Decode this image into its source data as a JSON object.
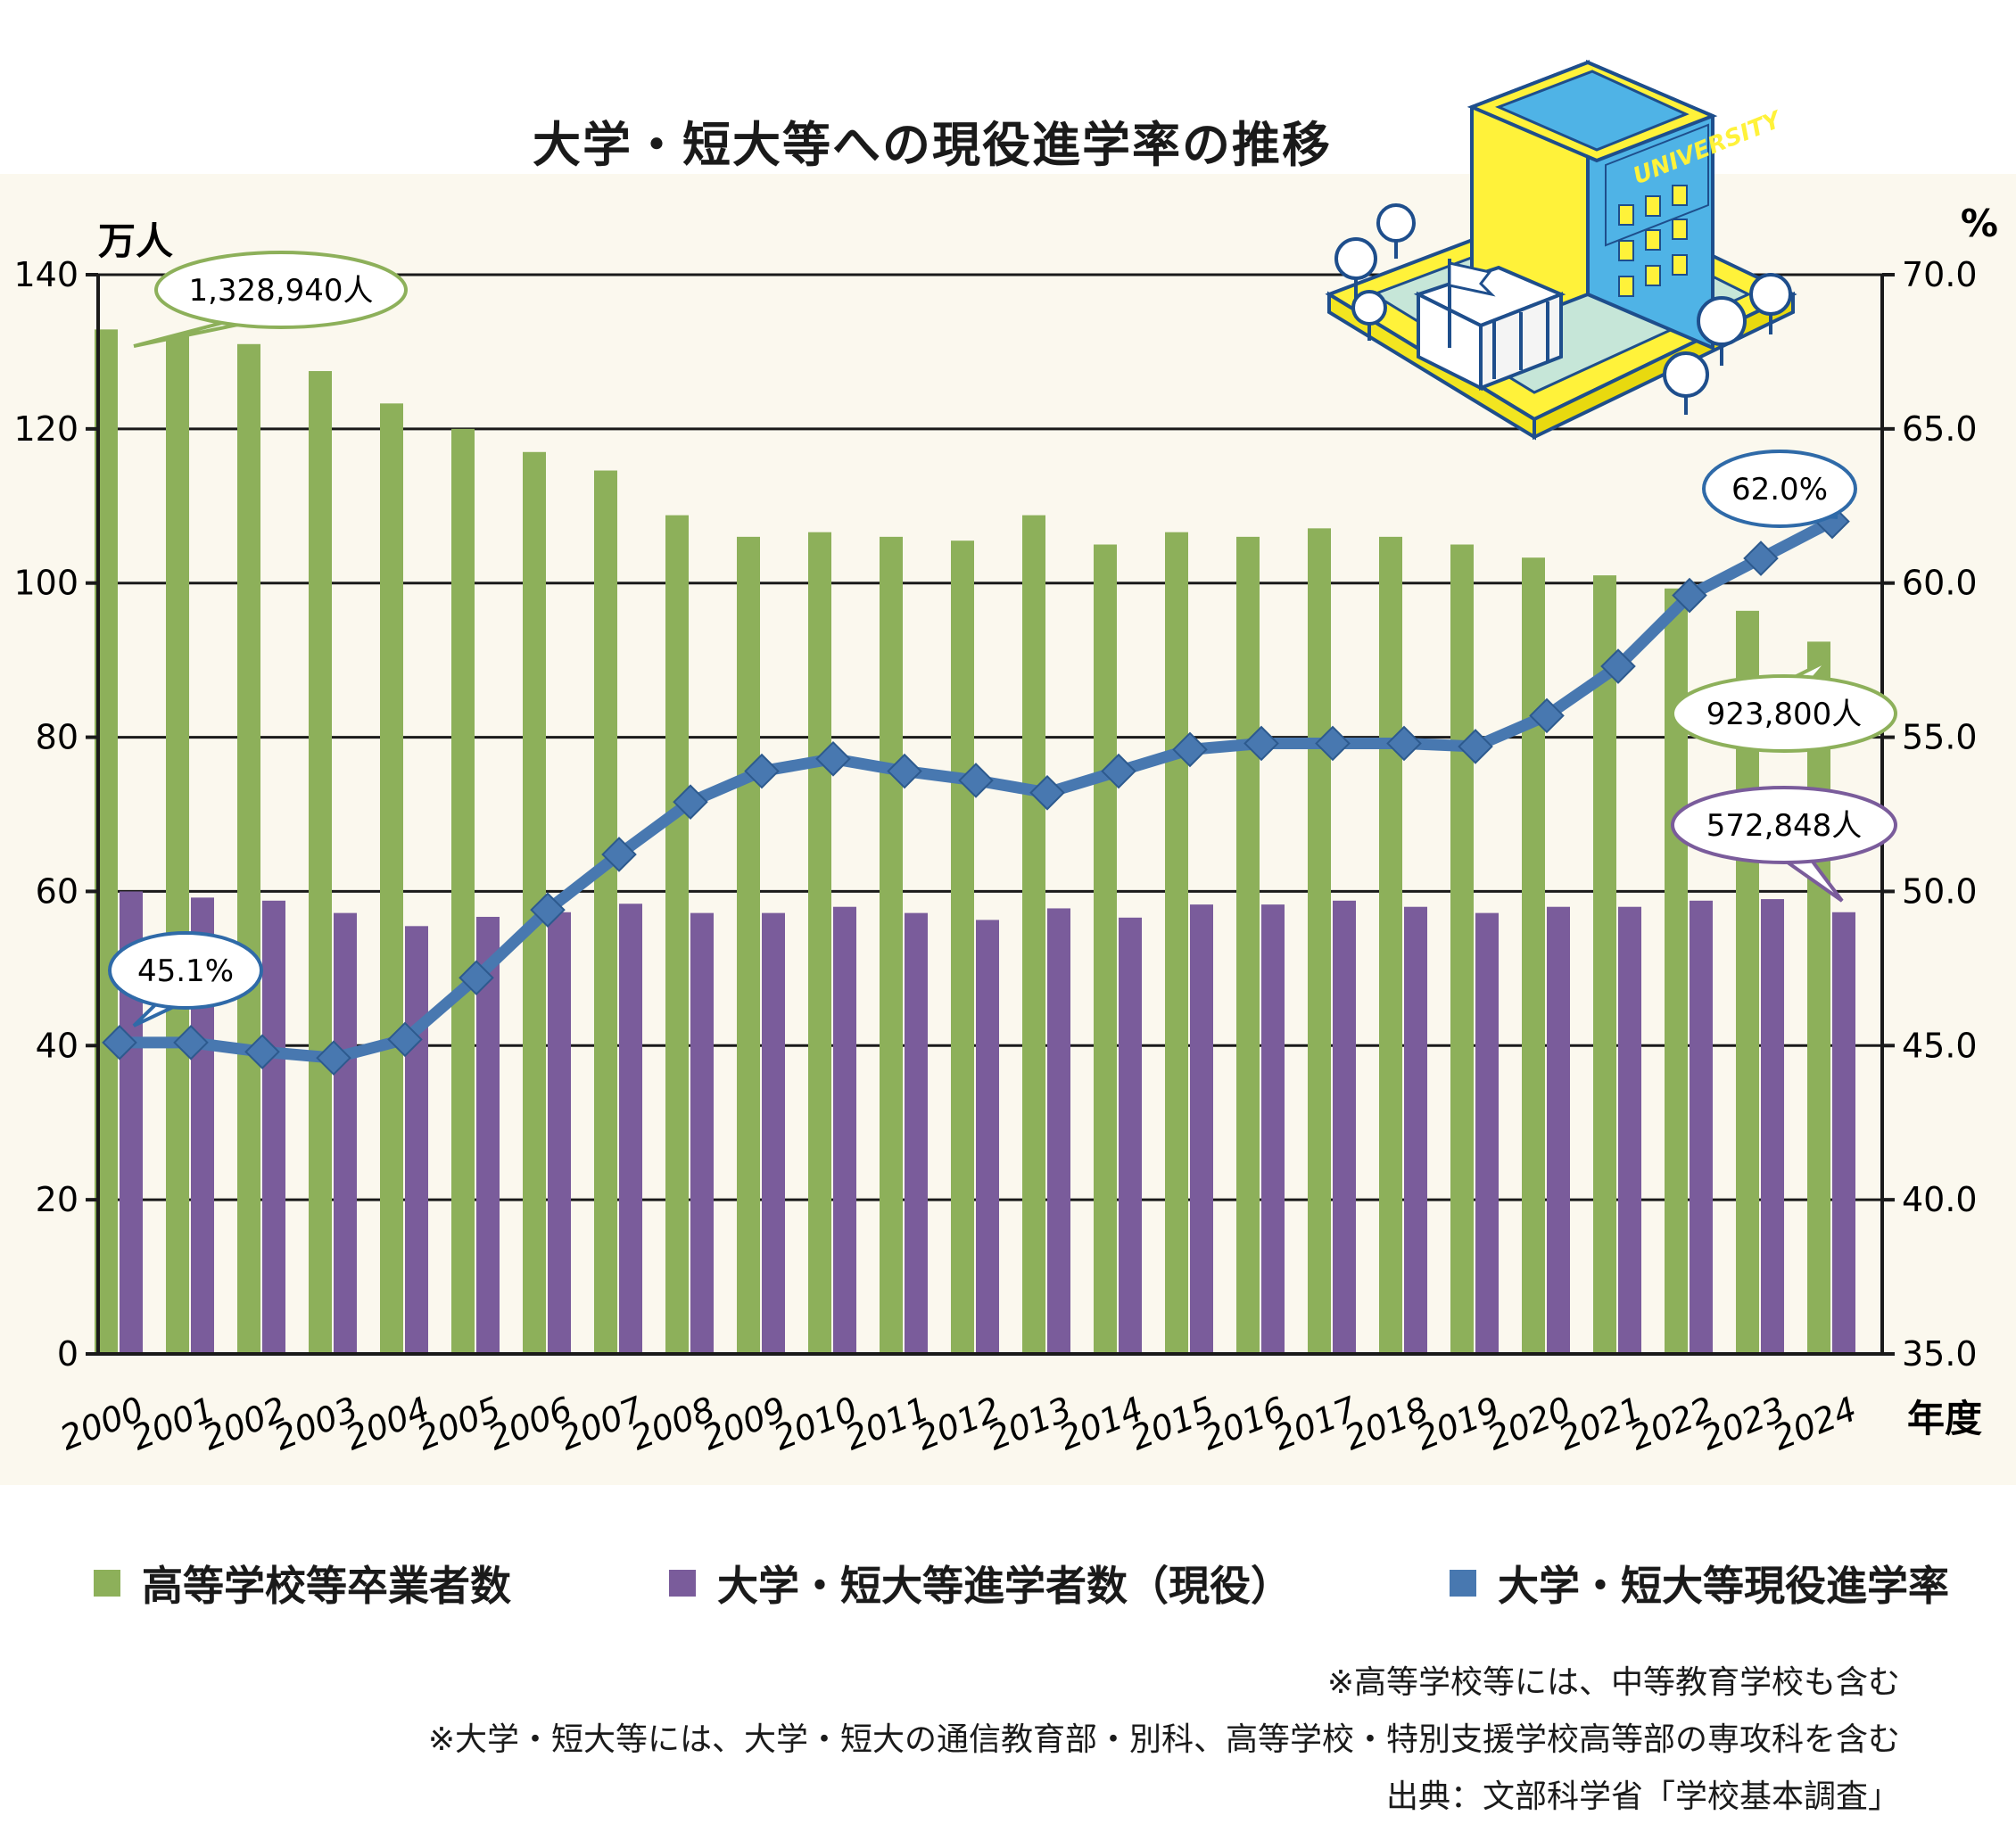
{
  "chart_data": {
    "type": "bar",
    "title": "大学・短大等への現役進学率の推移",
    "left_unit": "万人",
    "right_unit": "%",
    "x_unit": "年度",
    "categories": [
      "2000",
      "2001",
      "2002",
      "2003",
      "2004",
      "2005",
      "2006",
      "2007",
      "2008",
      "2009",
      "2010",
      "2011",
      "2012",
      "2013",
      "2014",
      "2015",
      "2016",
      "2017",
      "2018",
      "2019",
      "2020",
      "2021",
      "2022",
      "2023",
      "2024"
    ],
    "y_left_ticks": [
      "0",
      "20",
      "40",
      "60",
      "80",
      "100",
      "120",
      "140"
    ],
    "y_right_ticks": [
      "35.0",
      "40.0",
      "45.0",
      "50.0",
      "55.0",
      "60.0",
      "65.0",
      "70.0"
    ],
    "ylim_left": [
      0,
      140
    ],
    "ylim_right": [
      35.0,
      70.0
    ],
    "grid": true,
    "legend_position": "bottom",
    "series": [
      {
        "name": "高等学校等卒業者数",
        "axis": "left",
        "type": "bar",
        "color": "#8db05a",
        "values": [
          132.9,
          132.0,
          131.0,
          127.5,
          123.3,
          120.0,
          117.0,
          114.6,
          108.8,
          106.0,
          106.6,
          106.0,
          105.5,
          108.8,
          105.0,
          106.6,
          106.0,
          107.1,
          106.0,
          105.0,
          103.3,
          101.0,
          99.3,
          96.4,
          92.4
        ]
      },
      {
        "name": "大学・短大等進学者数（現役）",
        "axis": "left",
        "type": "bar",
        "color": "#7a5c9b",
        "values": [
          60.0,
          59.2,
          58.8,
          57.2,
          55.5,
          56.7,
          57.3,
          58.4,
          57.2,
          57.2,
          58.0,
          57.2,
          56.3,
          57.8,
          56.6,
          58.3,
          58.3,
          58.8,
          58.0,
          57.2,
          58.0,
          58.0,
          58.8,
          59.0,
          57.3
        ]
      },
      {
        "name": "大学・短大等現役進学率",
        "axis": "right",
        "type": "line",
        "color": "#4878b0",
        "values": [
          45.1,
          45.1,
          44.8,
          44.6,
          45.2,
          47.2,
          49.4,
          51.2,
          52.9,
          53.9,
          54.3,
          53.9,
          53.6,
          53.2,
          53.9,
          54.6,
          54.8,
          54.8,
          54.8,
          54.7,
          55.7,
          57.3,
          59.6,
          60.8,
          62.0
        ]
      }
    ],
    "annotations": [
      {
        "text": "1,328,940人",
        "series": 0,
        "index": 0
      },
      {
        "text": "923,800人",
        "series": 0,
        "index": 24
      },
      {
        "text": "572,848人",
        "series": 1,
        "index": 24
      },
      {
        "text": "45.1%",
        "series": 2,
        "index": 0
      },
      {
        "text": "62.0%",
        "series": 2,
        "index": 24
      }
    ]
  },
  "illustration": {
    "sign": "UNIVERSITY",
    "colors": {
      "yellow": "#fff23a",
      "blue": "#4fb3e6",
      "green": "#c6e6d8"
    }
  },
  "legend": [
    {
      "label": "高等学校等卒業者数",
      "color": "#8db05a"
    },
    {
      "label": "大学・短大等進学者数（現役）",
      "color": "#7a5c9b"
    },
    {
      "label": "大学・短大等現役進学率",
      "color": "#4878b0"
    }
  ],
  "notes": [
    "※高等学校等には、中等教育学校も含む",
    "※大学・短大等には、大学・短大の通信教育部・別科、高等学校・特別支援学校高等部の専攻科を含む",
    "出典：文部科学省「学校基本調査」"
  ]
}
